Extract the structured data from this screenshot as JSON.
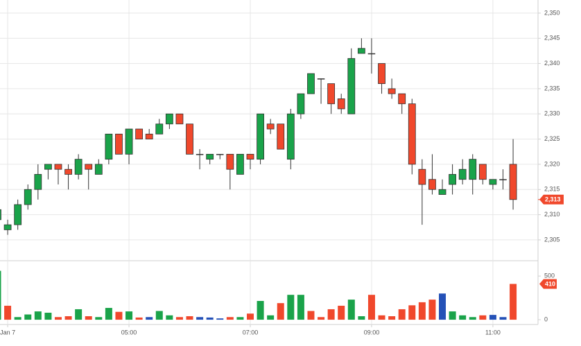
{
  "chart_data": {
    "type": "candlestick",
    "x": [
      "02:50",
      "03:00",
      "03:10",
      "03:20",
      "03:30",
      "03:40",
      "03:50",
      "04:00",
      "04:10",
      "04:20",
      "04:30",
      "04:40",
      "04:50",
      "05:00",
      "05:10",
      "05:20",
      "05:30",
      "05:40",
      "05:50",
      "06:00",
      "06:10",
      "06:20",
      "06:30",
      "06:40",
      "06:50",
      "07:00",
      "07:10",
      "07:20",
      "07:30",
      "07:40",
      "07:50",
      "08:00",
      "08:10",
      "08:20",
      "08:30",
      "08:40",
      "08:50",
      "09:00",
      "09:10",
      "09:20",
      "09:30",
      "09:40",
      "09:50",
      "10:00",
      "10:10",
      "10:20",
      "10:30",
      "10:40",
      "10:50",
      "11:00",
      "11:10",
      "11:20"
    ],
    "open": [
      2309,
      2307,
      2308,
      2312,
      2315,
      2319,
      2320,
      2319,
      2318,
      2320,
      2318,
      2321,
      2326,
      2322,
      2327,
      2326,
      2326,
      2328,
      2330,
      2328,
      2322,
      2321,
      2322,
      2322,
      2318,
      2322,
      2321,
      2328,
      2328,
      2321,
      2330,
      2334,
      2337,
      2336,
      2333,
      2330,
      2342,
      2342,
      2340,
      2335,
      2334,
      2332,
      2319,
      2317,
      2314,
      2316,
      2317,
      2317,
      2320,
      2316,
      2317,
      2320
    ],
    "high": [
      2312,
      2309,
      2313,
      2316,
      2320,
      2320,
      2320,
      2320,
      2322,
      2320,
      2321,
      2326,
      2326,
      2327,
      2327,
      2327,
      2329,
      2330,
      2330,
      2328,
      2323,
      2322,
      2322,
      2322,
      2322,
      2322,
      2330,
      2329,
      2328,
      2331,
      2334,
      2338,
      2337,
      2336,
      2334,
      2343,
      2345,
      2345,
      2340,
      2337,
      2334,
      2333,
      2321,
      2322,
      2317,
      2320,
      2321,
      2322,
      2320,
      2317,
      2319,
      2325
    ],
    "low": [
      2307,
      2306,
      2307,
      2311,
      2313,
      2317,
      2316,
      2315,
      2317,
      2315,
      2318,
      2320,
      2322,
      2320,
      2325,
      2325,
      2326,
      2327,
      2328,
      2322,
      2319,
      2320,
      2321,
      2315,
      2318,
      2319,
      2320,
      2326,
      2323,
      2319,
      2329,
      2334,
      2332,
      2330,
      2330,
      2330,
      2342,
      2338,
      2334,
      2333,
      2330,
      2318,
      2308,
      2314,
      2314,
      2314,
      2316,
      2314,
      2316,
      2315,
      2315,
      2311
    ],
    "close": [
      2311,
      2308,
      2312,
      2315,
      2318,
      2320,
      2319,
      2318,
      2321,
      2319,
      2320,
      2326,
      2322,
      2327,
      2325,
      2325,
      2328,
      2330,
      2328,
      2322,
      2322,
      2322,
      2322,
      2319,
      2322,
      2321,
      2330,
      2327,
      2323,
      2330,
      2334,
      2338,
      2337,
      2332,
      2331,
      2341,
      2343,
      2342,
      2336,
      2334,
      2332,
      2320,
      2316,
      2315,
      2315,
      2318,
      2319,
      2321,
      2317,
      2317,
      2317,
      2313
    ],
    "up_color": "#1aa34a",
    "down_color": "#f0482c",
    "doji_color": "#333333",
    "ylim": [
      2301,
      2352.6
    ],
    "yticks": [
      {
        "value": 2305,
        "label": "2,305"
      },
      {
        "value": 2310,
        "label": "2,310"
      },
      {
        "value": 2315,
        "label": "2,315"
      },
      {
        "value": 2320,
        "label": "2,320"
      },
      {
        "value": 2325,
        "label": "2,325"
      },
      {
        "value": 2330,
        "label": "2,330"
      },
      {
        "value": 2335,
        "label": "2,335"
      },
      {
        "value": 2340,
        "label": "2,340"
      },
      {
        "value": 2345,
        "label": "2,345"
      },
      {
        "value": 2350,
        "label": "2,350"
      }
    ],
    "last_price": {
      "value": 2313,
      "label": "2,313"
    },
    "xticks": [
      {
        "value": "03:00",
        "label": "Jan 7"
      },
      "05:00",
      "07:00",
      "09:00",
      "11:00"
    ],
    "volume": {
      "values": [
        560,
        160,
        30,
        60,
        95,
        80,
        30,
        40,
        120,
        40,
        30,
        135,
        90,
        95,
        25,
        30,
        100,
        50,
        30,
        40,
        30,
        25,
        15,
        30,
        30,
        70,
        215,
        50,
        190,
        285,
        285,
        100,
        30,
        120,
        160,
        230,
        40,
        285,
        50,
        40,
        120,
        165,
        200,
        230,
        300,
        95,
        50,
        30,
        50,
        55,
        30,
        410
      ],
      "colors": [
        "#1aa34a",
        "#f0482c",
        "#1aa34a",
        "#1aa34a",
        "#1aa34a",
        "#1aa34a",
        "#f0482c",
        "#f0482c",
        "#1aa34a",
        "#f0482c",
        "#1aa34a",
        "#1aa34a",
        "#f0482c",
        "#1aa34a",
        "#f0482c",
        "#2451b7",
        "#1aa34a",
        "#1aa34a",
        "#f0482c",
        "#f0482c",
        "#2451b7",
        "#2451b7",
        "#2451b7",
        "#f0482c",
        "#1aa34a",
        "#f0482c",
        "#1aa34a",
        "#1aa34a",
        "#f0482c",
        "#1aa34a",
        "#1aa34a",
        "#f0482c",
        "#f0482c",
        "#f0482c",
        "#f0482c",
        "#1aa34a",
        "#1aa34a",
        "#f0482c",
        "#f0482c",
        "#f0482c",
        "#f0482c",
        "#f0482c",
        "#f0482c",
        "#f0482c",
        "#2451b7",
        "#1aa34a",
        "#1aa34a",
        "#1aa34a",
        "#f0482c",
        "#2451b7",
        "#2451b7",
        "#f0482c"
      ],
      "ylim": [
        -55,
        660
      ],
      "yticks": [
        0,
        500
      ]
    },
    "grid": true
  }
}
